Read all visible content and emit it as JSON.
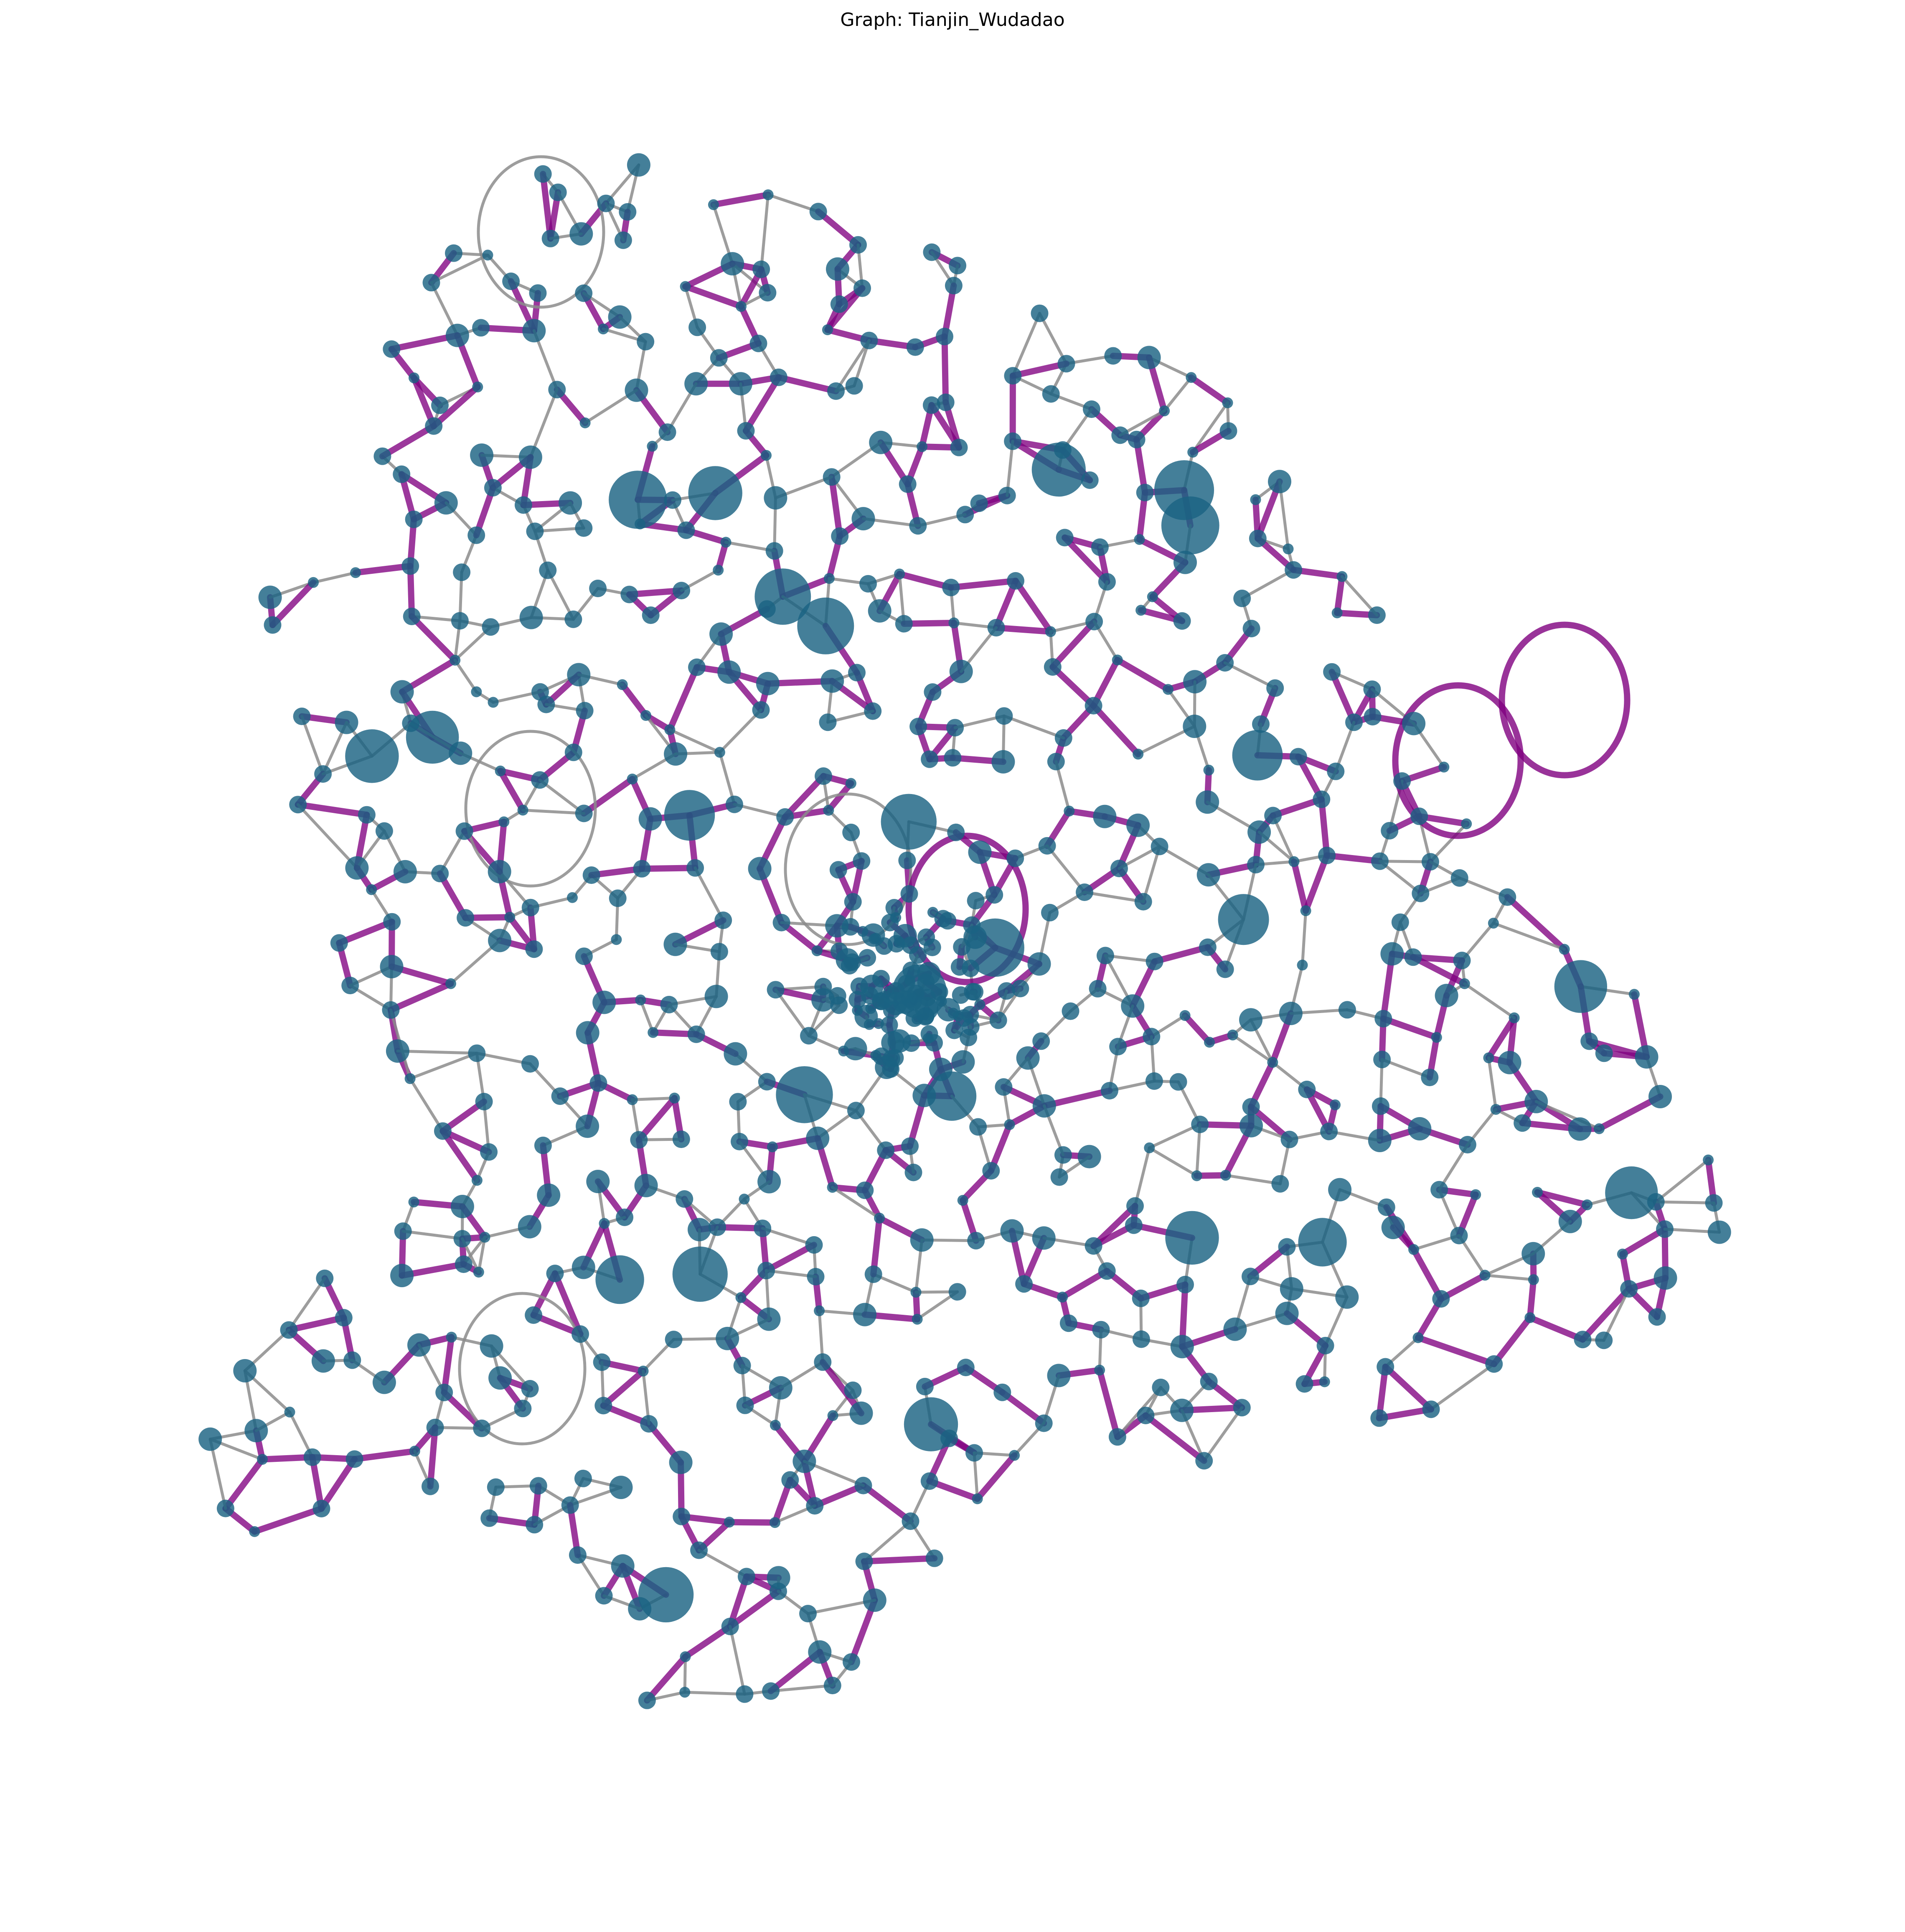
{
  "title": "Graph: Tianjin_Wudadao",
  "colors": {
    "background": "#ffffff",
    "node": "#1b6383",
    "edge_default": "#8c8c8c",
    "edge_highlight": "#800080"
  }
}
